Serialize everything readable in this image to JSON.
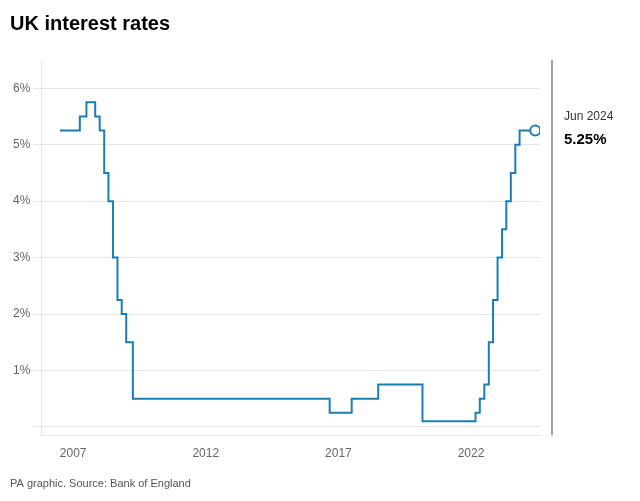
{
  "chart_data": {
    "type": "line",
    "title": "UK interest rates",
    "caption": "PA graphic. Source: Bank of England",
    "annotations": [
      "Jun 2024",
      "5.25%"
    ],
    "line_style": "step",
    "color": "#1a7db5",
    "grid": true,
    "x": [
      2006.5,
      2007.0,
      2007.25,
      2007.5,
      2007.67,
      2007.83,
      2008.0,
      2008.17,
      2008.33,
      2008.5,
      2008.67,
      2008.83,
      2009.0,
      2009.25,
      2009.5,
      2016.5,
      2016.67,
      2017.0,
      2017.33,
      2017.5,
      2017.83,
      2018.0,
      2018.5,
      2018.67,
      2019.0,
      2019.5,
      2020.0,
      2020.17,
      2020.33,
      2020.5,
      2021.67,
      2022.0,
      2022.17,
      2022.33,
      2022.5,
      2022.67,
      2022.83,
      2023.0,
      2023.17,
      2023.33,
      2023.5,
      2023.67,
      2023.83,
      2024.0,
      2024.42
    ],
    "values": [
      5.25,
      5.25,
      5.5,
      5.75,
      5.75,
      5.5,
      5.25,
      4.5,
      4.0,
      3.0,
      2.25,
      2.0,
      1.5,
      0.5,
      0.5,
      0.5,
      0.25,
      0.25,
      0.25,
      0.5,
      0.5,
      0.5,
      0.75,
      0.75,
      0.75,
      0.75,
      0.75,
      0.1,
      0.1,
      0.1,
      0.1,
      0.1,
      0.25,
      0.5,
      0.75,
      1.5,
      2.25,
      3.0,
      3.5,
      4.0,
      4.5,
      5.0,
      5.25,
      5.25,
      5.25
    ],
    "xlim": [
      2005.8,
      2024.6
    ],
    "xticks": [
      2007,
      2012,
      2017,
      2022
    ],
    "ylim": [
      -0.15,
      6.5
    ],
    "yticks": [
      {
        "value": 0,
        "label": ""
      },
      {
        "value": 1,
        "label": "1%"
      },
      {
        "value": 2,
        "label": "2%"
      },
      {
        "value": 3,
        "label": "3%"
      },
      {
        "value": 4,
        "label": "4%"
      },
      {
        "value": 5,
        "label": "5%"
      },
      {
        "value": 6,
        "label": "6%"
      }
    ]
  }
}
